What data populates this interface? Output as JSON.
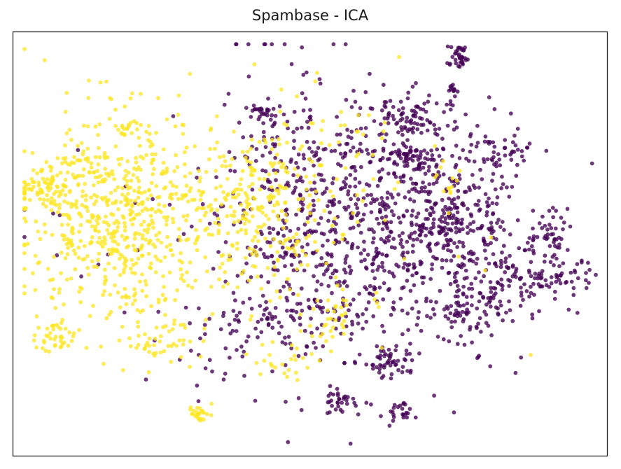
{
  "chart_data": {
    "type": "scatter",
    "title": "Spambase - ICA",
    "xlabel": "",
    "ylabel": "",
    "xlim": [
      -1,
      1
    ],
    "ylim": [
      -1,
      1
    ],
    "show_ticks": false,
    "grid": false,
    "legend": "none",
    "colors": {
      "class_0": "#440154",
      "class_1": "#fde725"
    },
    "series": [
      {
        "values": [
          {
            "cx": 0.33,
            "cy": 0.58,
            "sx": 0.07,
            "sy": 0.04,
            "n": 70
          },
          {
            "cx": 0.32,
            "cy": 0.41,
            "sx": 0.04,
            "sy": 0.03,
            "n": 55
          },
          {
            "cx": 0.28,
            "cy": -0.55,
            "sx": 0.04,
            "sy": 0.04,
            "n": 50
          },
          {
            "cx": 0.22,
            "cy": 0.06,
            "sx": 0.25,
            "sy": 0.33,
            "n": 720
          },
          {
            "cx": 0.44,
            "cy": 0.16,
            "sx": 0.12,
            "sy": 0.18,
            "n": 180
          },
          {
            "cx": 0.62,
            "cy": -0.18,
            "sx": 0.07,
            "sy": 0.07,
            "n": 80
          },
          {
            "cx": 0.82,
            "cy": -0.16,
            "sx": 0.07,
            "sy": 0.04,
            "n": 60
          },
          {
            "cx": 0.52,
            "cy": -0.33,
            "sx": 0.07,
            "sy": 0.04,
            "n": 55
          },
          {
            "cx": 0.8,
            "cy": 0.02,
            "sx": 0.05,
            "sy": 0.06,
            "n": 45
          },
          {
            "cx": 0.65,
            "cy": 0.41,
            "sx": 0.04,
            "sy": 0.04,
            "n": 30
          },
          {
            "cx": 0.55,
            "cy": 0.1,
            "sx": 0.07,
            "sy": 0.06,
            "n": 40
          },
          {
            "cx": -0.16,
            "cy": 0.62,
            "sx": 0.03,
            "sy": 0.02,
            "n": 25
          },
          {
            "cx": 0.3,
            "cy": -0.8,
            "sx": 0.02,
            "sy": 0.03,
            "n": 20
          },
          {
            "cx": 0.09,
            "cy": -0.74,
            "sx": 0.03,
            "sy": 0.03,
            "n": 30
          },
          {
            "cx": -0.03,
            "cy": 0.03,
            "sx": 0.1,
            "sy": 0.25,
            "n": 110
          },
          {
            "cx": -0.12,
            "cy": -0.3,
            "sx": 0.1,
            "sy": 0.1,
            "n": 45
          },
          {
            "cx": -0.05,
            "cy": 0.4,
            "sx": 0.12,
            "sy": 0.12,
            "n": 40
          },
          {
            "cx": -0.28,
            "cy": -0.55,
            "sx": 0.08,
            "sy": 0.08,
            "n": 25
          },
          {
            "cx": -0.45,
            "cy": -0.05,
            "sx": 0.3,
            "sy": 0.2,
            "n": 30
          },
          {
            "cx": 0.5,
            "cy": 0.88,
            "sx": 0.02,
            "sy": 0.03,
            "n": 35
          },
          {
            "cx": 0.48,
            "cy": 0.72,
            "sx": 0.01,
            "sy": 0.02,
            "n": 12
          },
          {
            "cx": -0.2,
            "cy": 0.75,
            "sx": 0.1,
            "sy": 0.35,
            "n": 20
          }
        ]
      },
      {
        "values": [
          {
            "cx": -0.64,
            "cy": 0.12,
            "sx": 0.16,
            "sy": 0.25,
            "n": 600
          },
          {
            "cx": -0.8,
            "cy": 0.25,
            "sx": 0.06,
            "sy": 0.12,
            "n": 60
          },
          {
            "cx": -0.18,
            "cy": 0.14,
            "sx": 0.13,
            "sy": 0.18,
            "n": 230
          },
          {
            "cx": -0.92,
            "cy": 0.27,
            "sx": 0.04,
            "sy": 0.03,
            "n": 45
          },
          {
            "cx": -0.86,
            "cy": -0.44,
            "sx": 0.03,
            "sy": 0.04,
            "n": 40
          },
          {
            "cx": -0.48,
            "cy": -0.45,
            "sx": 0.07,
            "sy": 0.06,
            "n": 45
          },
          {
            "cx": -0.37,
            "cy": -0.8,
            "sx": 0.02,
            "sy": 0.02,
            "n": 25
          },
          {
            "cx": 0.07,
            "cy": -0.33,
            "sx": 0.03,
            "sy": 0.08,
            "n": 30
          },
          {
            "cx": -0.08,
            "cy": -0.55,
            "sx": 0.06,
            "sy": 0.05,
            "n": 25
          },
          {
            "cx": -0.17,
            "cy": 0.35,
            "sx": 0.15,
            "sy": 0.2,
            "n": 40
          },
          {
            "cx": 0.2,
            "cy": 0.5,
            "sx": 0.12,
            "sy": 0.18,
            "n": 25
          },
          {
            "cx": 0.47,
            "cy": 0.3,
            "sx": 0.03,
            "sy": 0.04,
            "n": 12
          },
          {
            "cx": 0.15,
            "cy": 0.0,
            "sx": 0.25,
            "sy": 0.3,
            "n": 35
          },
          {
            "cx": -0.6,
            "cy": 0.55,
            "sx": 0.05,
            "sy": 0.02,
            "n": 20
          }
        ]
      }
    ]
  }
}
